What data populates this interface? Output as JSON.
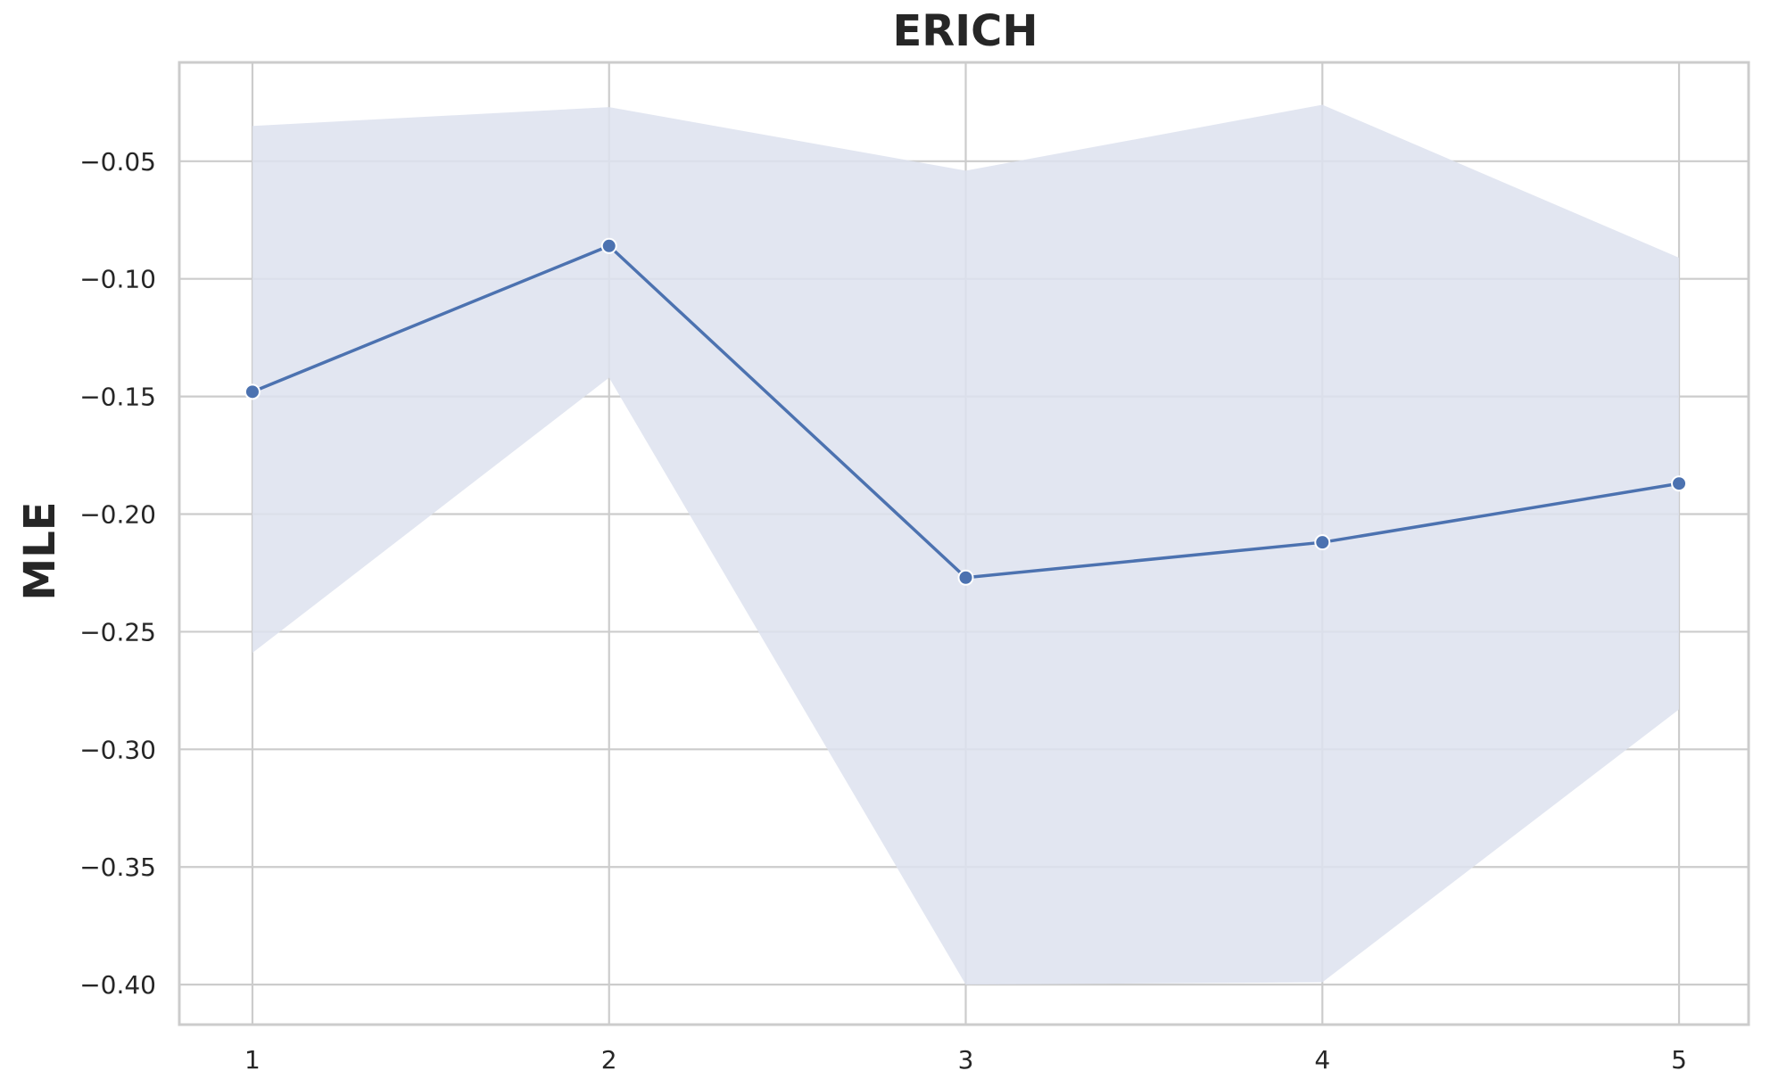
{
  "chart_data": {
    "type": "line",
    "title": "ERICH",
    "xlabel": "",
    "ylabel": "MLE",
    "x": [
      1,
      2,
      3,
      4,
      5
    ],
    "x_tick_labels": [
      "1",
      "2",
      "3",
      "4",
      "5"
    ],
    "y_ticks": [
      -0.05,
      -0.1,
      -0.15,
      -0.2,
      -0.25,
      -0.3,
      -0.35,
      -0.4
    ],
    "y_tick_labels": [
      "−0.05",
      "−0.10",
      "−0.15",
      "−0.20",
      "−0.25",
      "−0.30",
      "−0.35",
      "−0.40"
    ],
    "xlim": [
      0.795,
      5.195
    ],
    "ylim": [
      -0.417,
      -0.008
    ],
    "grid": true,
    "series": [
      {
        "values": [
          -0.148,
          -0.086,
          -0.227,
          -0.212,
          -0.187
        ],
        "ci_upper": [
          -0.035,
          -0.027,
          -0.054,
          -0.026,
          -0.091
        ],
        "ci_lower": [
          -0.259,
          -0.142,
          -0.4,
          -0.399,
          -0.283
        ],
        "color": "#4c72b0",
        "band_color": "#dde2ee"
      }
    ]
  }
}
